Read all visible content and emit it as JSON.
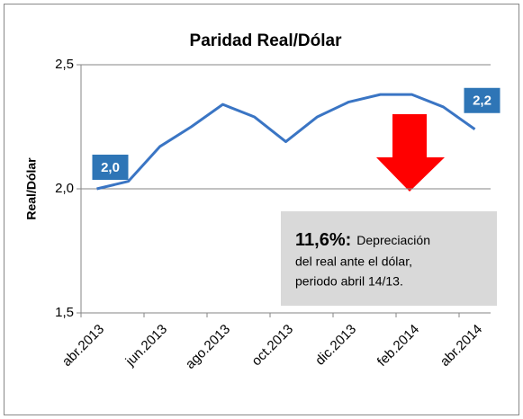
{
  "chart_data": {
    "type": "line",
    "title": "Paridad Real/Dólar",
    "y_label": "Real/Dólar",
    "categories": [
      "abr.2013",
      null,
      "jun.2013",
      null,
      "ago.2013",
      null,
      "oct.2013",
      null,
      "dic.2013",
      null,
      "feb.2014",
      null,
      "abr.2014"
    ],
    "series": [
      {
        "name": "Real/Dólar",
        "color": "#3a75c4",
        "values": [
          2.0,
          2.03,
          2.17,
          2.25,
          2.34,
          2.29,
          2.19,
          2.29,
          2.35,
          2.38,
          2.38,
          2.33,
          2.24
        ],
        "value_labels": [
          "2,0",
          null,
          null,
          null,
          null,
          null,
          null,
          null,
          null,
          null,
          null,
          null,
          "2,2"
        ]
      }
    ],
    "ylim": [
      1.5,
      2.5
    ],
    "yticks": [
      {
        "value": 1.5,
        "label": "1,5"
      },
      {
        "value": 2.0,
        "label": "2,0"
      },
      {
        "value": 2.5,
        "label": "2,5"
      }
    ],
    "grid": true,
    "annotation": {
      "highlight": "11,6%:",
      "lines": [
        "Depreciación",
        "del real ante el dólar,",
        "periodo abril 14/13."
      ]
    }
  }
}
